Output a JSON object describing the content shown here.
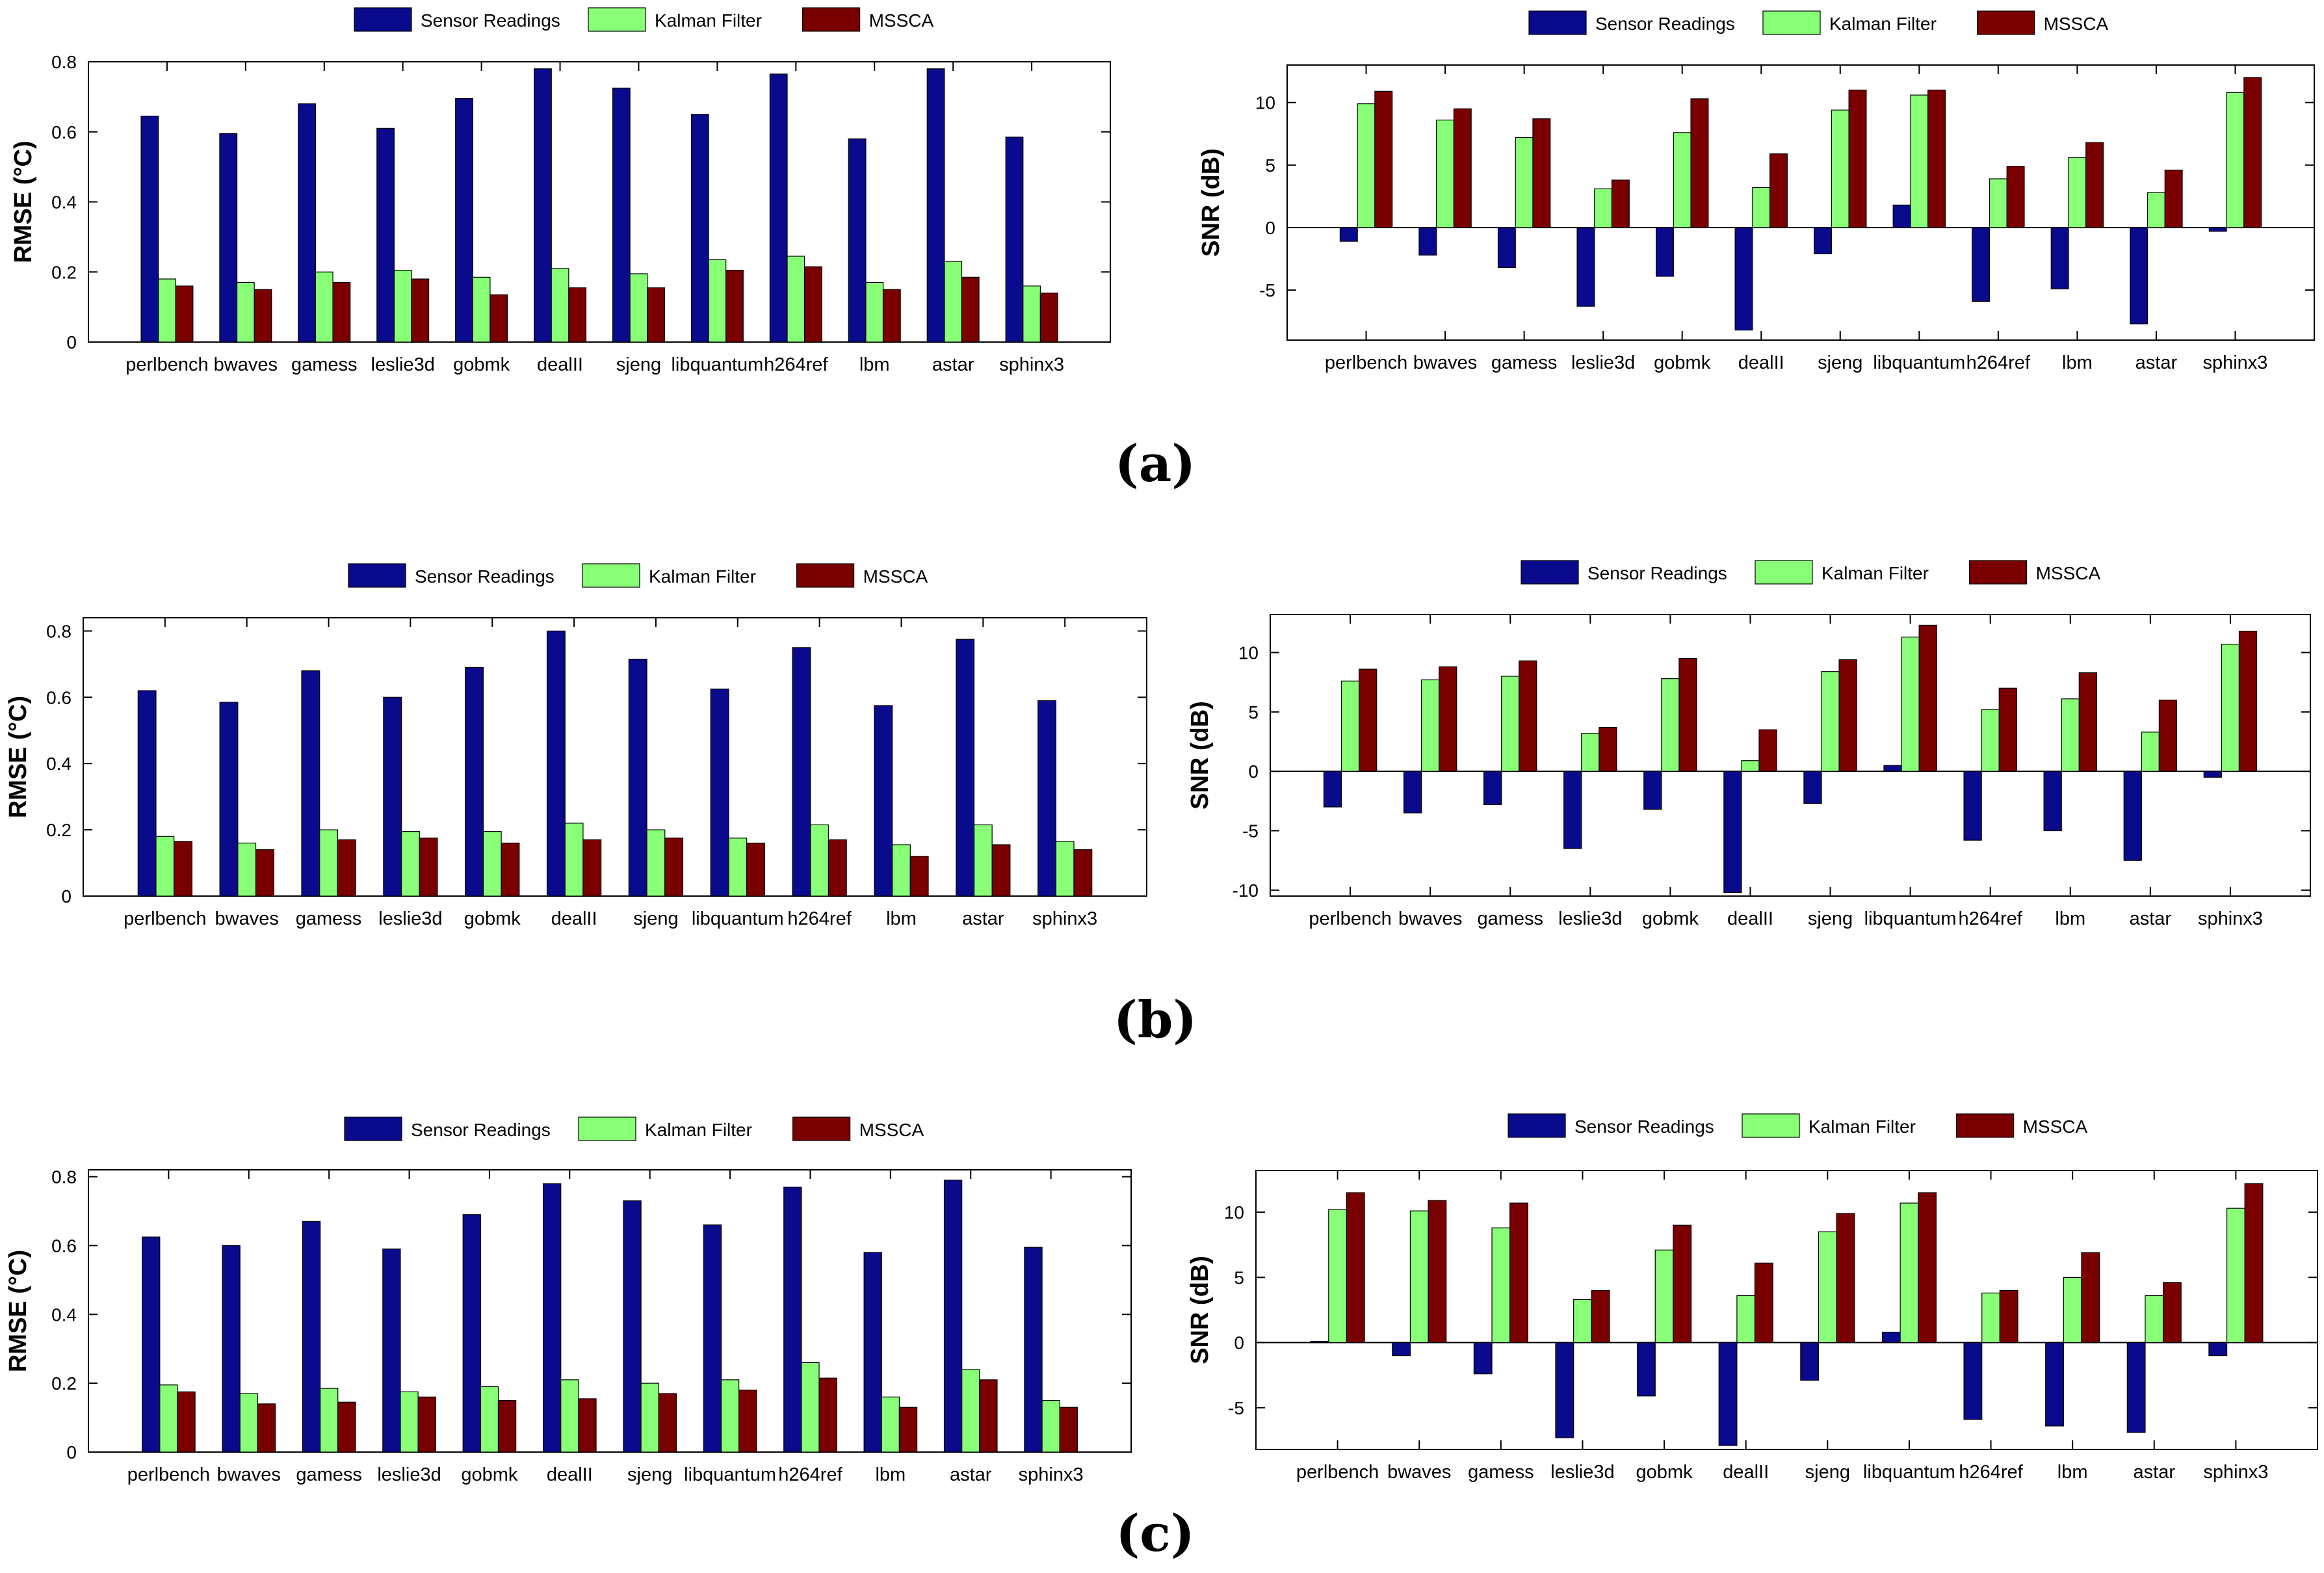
{
  "legend_colors": {
    "Sensor Readings": "#0a0a8c",
    "Kalman Filter": "#88ff77",
    "MSSCA": "#7a0000"
  },
  "panels": [
    {
      "label": "(a)"
    },
    {
      "label": "(b)"
    },
    {
      "label": "(c)"
    }
  ],
  "chart_data": [
    {
      "id": "a-rmse",
      "panel": "(a)",
      "type": "bar",
      "title": "",
      "xlabel": "",
      "ylabel": "RMSE (°C)",
      "ylim": [
        0,
        0.8
      ],
      "yticks": [
        0,
        0.2,
        0.4,
        0.6,
        0.8
      ],
      "ytick_labels": [
        "0",
        "0.2",
        "0.4",
        "0.6",
        "0.8"
      ],
      "legend": [
        "Sensor Readings",
        "Kalman Filter",
        "MSSCA"
      ],
      "legend_position": "top-center",
      "categories": [
        "perlbench",
        "bwaves",
        "gamess",
        "leslie3d",
        "gobmk",
        "dealII",
        "sjeng",
        "libquantum",
        "h264ref",
        "lbm",
        "astar",
        "sphinx3"
      ],
      "series": [
        {
          "name": "Sensor Readings",
          "values": [
            0.645,
            0.595,
            0.68,
            0.61,
            0.695,
            0.78,
            0.725,
            0.65,
            0.765,
            0.58,
            0.78,
            0.585
          ]
        },
        {
          "name": "Kalman Filter",
          "values": [
            0.18,
            0.17,
            0.2,
            0.205,
            0.185,
            0.21,
            0.195,
            0.235,
            0.245,
            0.17,
            0.23,
            0.16
          ]
        },
        {
          "name": "MSSCA",
          "values": [
            0.16,
            0.15,
            0.17,
            0.18,
            0.135,
            0.155,
            0.155,
            0.205,
            0.215,
            0.15,
            0.185,
            0.14
          ]
        }
      ]
    },
    {
      "id": "a-snr",
      "panel": "(a)",
      "type": "bar",
      "title": "",
      "xlabel": "",
      "ylabel": "SNR (dB)",
      "ylim": [
        -9,
        13
      ],
      "yticks": [
        -5,
        0,
        5,
        10
      ],
      "ytick_labels": [
        "-5",
        "0",
        "5",
        "10"
      ],
      "legend": [
        "Sensor Readings",
        "Kalman Filter",
        "MSSCA"
      ],
      "legend_position": "top-center",
      "categories": [
        "perlbench",
        "bwaves",
        "gamess",
        "leslie3d",
        "gobmk",
        "dealII",
        "sjeng",
        "libquantum",
        "h264ref",
        "lbm",
        "astar",
        "sphinx3"
      ],
      "series": [
        {
          "name": "Sensor Readings",
          "values": [
            -1.1,
            -2.2,
            -3.2,
            -6.3,
            -3.9,
            -8.2,
            -2.1,
            1.8,
            -5.9,
            -4.9,
            -7.7,
            -0.3
          ]
        },
        {
          "name": "Kalman Filter",
          "values": [
            9.9,
            8.6,
            7.2,
            3.1,
            7.6,
            3.2,
            9.4,
            10.6,
            3.9,
            5.6,
            2.8,
            10.8
          ]
        },
        {
          "name": "MSSCA",
          "values": [
            10.9,
            9.5,
            8.7,
            3.8,
            10.3,
            5.9,
            11.0,
            11.0,
            4.9,
            6.8,
            4.6,
            12.0
          ]
        }
      ]
    },
    {
      "id": "b-rmse",
      "panel": "(b)",
      "type": "bar",
      "title": "",
      "xlabel": "",
      "ylabel": "RMSE (°C)",
      "ylim": [
        0,
        0.84
      ],
      "yticks": [
        0,
        0.2,
        0.4,
        0.6,
        0.8
      ],
      "ytick_labels": [
        "0",
        "0.2",
        "0.4",
        "0.6",
        "0.8"
      ],
      "legend": [
        "Sensor Readings",
        "Kalman Filter",
        "MSSCA"
      ],
      "legend_position": "top-center",
      "categories": [
        "perlbench",
        "bwaves",
        "gamess",
        "leslie3d",
        "gobmk",
        "dealII",
        "sjeng",
        "libquantum",
        "h264ref",
        "lbm",
        "astar",
        "sphinx3"
      ],
      "series": [
        {
          "name": "Sensor Readings",
          "values": [
            0.62,
            0.585,
            0.68,
            0.6,
            0.69,
            0.8,
            0.715,
            0.625,
            0.75,
            0.575,
            0.775,
            0.59
          ]
        },
        {
          "name": "Kalman Filter",
          "values": [
            0.18,
            0.16,
            0.2,
            0.195,
            0.195,
            0.22,
            0.2,
            0.175,
            0.215,
            0.155,
            0.215,
            0.165
          ]
        },
        {
          "name": "MSSCA",
          "values": [
            0.165,
            0.14,
            0.17,
            0.175,
            0.16,
            0.17,
            0.175,
            0.16,
            0.17,
            0.12,
            0.155,
            0.14
          ]
        }
      ]
    },
    {
      "id": "b-snr",
      "panel": "(b)",
      "type": "bar",
      "title": "",
      "xlabel": "",
      "ylabel": "SNR (dB)",
      "ylim": [
        -10.5,
        13.2
      ],
      "yticks": [
        -10,
        -5,
        0,
        5,
        10
      ],
      "ytick_labels": [
        "-10",
        "-5",
        "0",
        "5",
        "10"
      ],
      "legend": [
        "Sensor Readings",
        "Kalman Filter",
        "MSSCA"
      ],
      "legend_position": "top-center",
      "categories": [
        "perlbench",
        "bwaves",
        "gamess",
        "leslie3d",
        "gobmk",
        "dealII",
        "sjeng",
        "libquantum",
        "h264ref",
        "lbm",
        "astar",
        "sphinx3"
      ],
      "series": [
        {
          "name": "Sensor Readings",
          "values": [
            -3.0,
            -3.5,
            -2.8,
            -6.5,
            -3.2,
            -10.2,
            -2.7,
            0.5,
            -5.8,
            -5.0,
            -7.5,
            -0.5
          ]
        },
        {
          "name": "Kalman Filter",
          "values": [
            7.6,
            7.7,
            8.0,
            3.2,
            7.8,
            0.9,
            8.4,
            11.3,
            5.2,
            6.1,
            3.3,
            10.7
          ]
        },
        {
          "name": "MSSCA",
          "values": [
            8.6,
            8.8,
            9.3,
            3.7,
            9.5,
            3.5,
            9.4,
            12.3,
            7.0,
            8.3,
            6.0,
            11.8
          ]
        }
      ]
    },
    {
      "id": "c-rmse",
      "panel": "(c)",
      "type": "bar",
      "title": "",
      "xlabel": "",
      "ylabel": "RMSE (°C)",
      "ylim": [
        0,
        0.82
      ],
      "yticks": [
        0,
        0.2,
        0.4,
        0.6,
        0.8
      ],
      "ytick_labels": [
        "0",
        "0.2",
        "0.4",
        "0.6",
        "0.8"
      ],
      "legend": [
        "Sensor Readings",
        "Kalman Filter",
        "MSSCA"
      ],
      "legend_position": "top-center",
      "categories": [
        "perlbench",
        "bwaves",
        "gamess",
        "leslie3d",
        "gobmk",
        "dealII",
        "sjeng",
        "libquantum",
        "h264ref",
        "lbm",
        "astar",
        "sphinx3"
      ],
      "series": [
        {
          "name": "Sensor Readings",
          "values": [
            0.625,
            0.6,
            0.67,
            0.59,
            0.69,
            0.78,
            0.73,
            0.66,
            0.77,
            0.58,
            0.79,
            0.595
          ]
        },
        {
          "name": "Kalman Filter",
          "values": [
            0.195,
            0.17,
            0.185,
            0.175,
            0.19,
            0.21,
            0.2,
            0.21,
            0.26,
            0.16,
            0.24,
            0.15
          ]
        },
        {
          "name": "MSSCA",
          "values": [
            0.175,
            0.14,
            0.145,
            0.16,
            0.15,
            0.155,
            0.17,
            0.18,
            0.215,
            0.13,
            0.21,
            0.13
          ]
        }
      ]
    },
    {
      "id": "c-snr",
      "panel": "(c)",
      "type": "bar",
      "title": "",
      "xlabel": "",
      "ylabel": "SNR (dB)",
      "ylim": [
        -8.2,
        13.2
      ],
      "yticks": [
        -5,
        0,
        5,
        10
      ],
      "ytick_labels": [
        "-5",
        "0",
        "5",
        "10"
      ],
      "legend": [
        "Sensor Readings",
        "Kalman Filter",
        "MSSCA"
      ],
      "legend_position": "top-center",
      "categories": [
        "perlbench",
        "bwaves",
        "gamess",
        "leslie3d",
        "gobmk",
        "dealII",
        "sjeng",
        "libquantum",
        "h264ref",
        "lbm",
        "astar",
        "sphinx3"
      ],
      "series": [
        {
          "name": "Sensor Readings",
          "values": [
            0.1,
            -1.0,
            -2.4,
            -7.3,
            -4.1,
            -7.9,
            -2.9,
            0.8,
            -5.9,
            -6.4,
            -6.9,
            -1.0
          ]
        },
        {
          "name": "Kalman Filter",
          "values": [
            10.2,
            10.1,
            8.8,
            3.3,
            7.1,
            3.6,
            8.5,
            10.7,
            3.8,
            5.0,
            3.6,
            10.3
          ]
        },
        {
          "name": "MSSCA",
          "values": [
            11.5,
            10.9,
            10.7,
            4.0,
            9.0,
            6.1,
            9.9,
            11.5,
            4.0,
            6.9,
            4.6,
            12.2
          ]
        }
      ]
    }
  ]
}
